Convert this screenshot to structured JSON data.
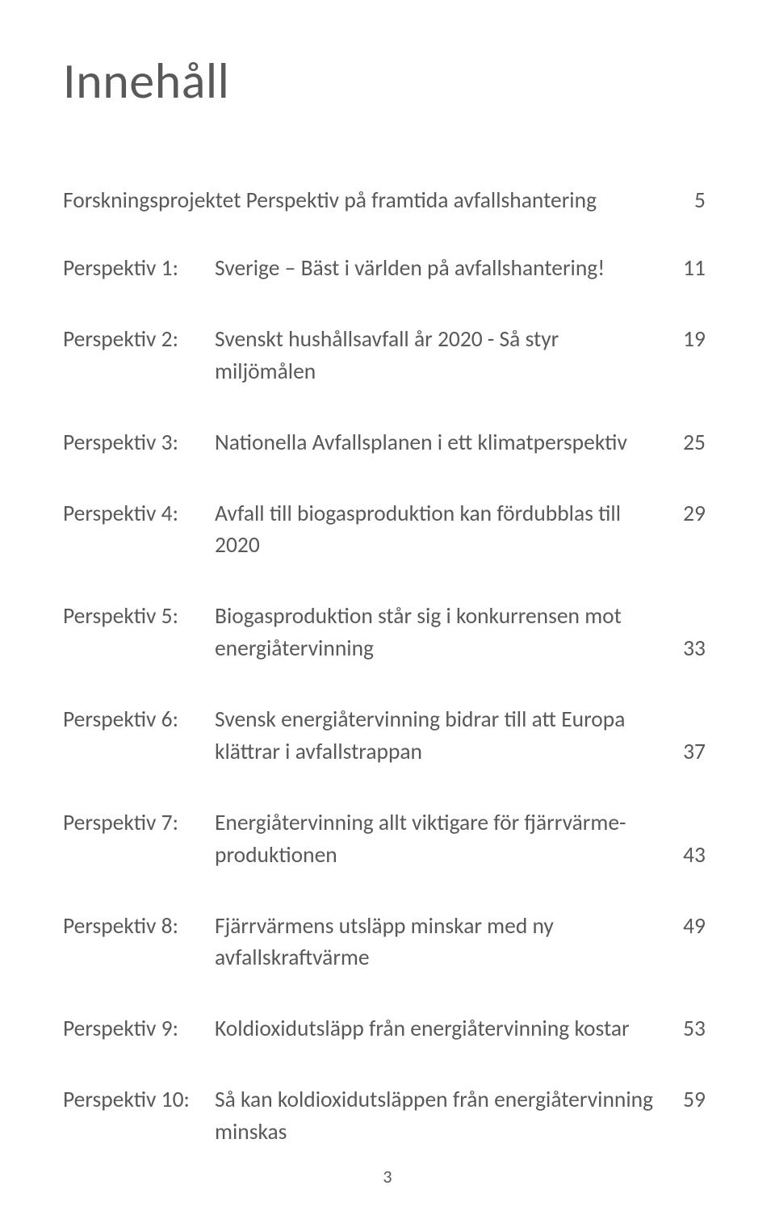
{
  "page": {
    "title": "Innehåll",
    "intro": {
      "text": "Forskningsprojektet Perspektiv på framtida avfallshantering",
      "page": "5"
    },
    "entries": [
      {
        "label": "Perspektiv 1:",
        "text": "Sverige – Bäst i världen på avfallshantering!",
        "page": "11",
        "multiline": false
      },
      {
        "label": "Perspektiv 2:",
        "text": "Svenskt hushållsavfall år 2020 - Så styr miljömålen",
        "page": "19",
        "multiline": false
      },
      {
        "label": "Perspektiv 3:",
        "text": "Nationella Avfallsplanen i ett klimatperspektiv",
        "page": "25",
        "multiline": false
      },
      {
        "label": "Perspektiv 4:",
        "text": "Avfall till biogasproduktion kan fördubblas till 2020",
        "page": "29",
        "multiline": false
      },
      {
        "label": "Perspektiv 5:",
        "text": "Biogasproduktion står sig i konkurrensen mot energi­återvinning",
        "page": "33",
        "multiline": true
      },
      {
        "label": "Perspektiv 6:",
        "text": "Svensk energiåtervinning bidrar till att Europa klättrar i avfallstrappan",
        "page": "37",
        "multiline": true
      },
      {
        "label": "Perspektiv 7:",
        "text": "Energiåtervinning allt viktigare för fjärrvärme­produktionen",
        "page": "43",
        "multiline": true
      },
      {
        "label": "Perspektiv 8:",
        "text": "Fjärrvärmens utsläpp minskar med ny avfallskraftvärme",
        "page": "49",
        "multiline": false
      },
      {
        "label": "Perspektiv 9:",
        "text": "Koldioxidutsläpp från energiåtervinning kostar",
        "page": "53",
        "multiline": false
      },
      {
        "label": "Perspektiv 10:",
        "text": "Så kan koldioxidutsläppen från energiåtervinning minskas",
        "page": "59",
        "multiline": false
      }
    ],
    "footer_page": "3"
  },
  "style": {
    "background_color": "#ffffff",
    "text_color": "#595959",
    "title_fontsize": 62,
    "body_fontsize": 27.5,
    "footer_fontsize": 22,
    "font_family": "Calibri"
  }
}
